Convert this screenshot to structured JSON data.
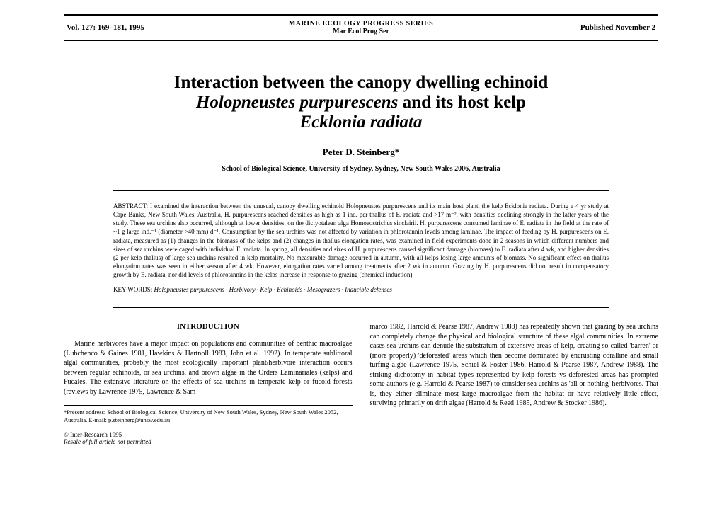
{
  "header": {
    "volume": "Vol. 127: 169–181, 1995",
    "journal_full": "MARINE ECOLOGY PROGRESS SERIES",
    "journal_abbrev": "Mar Ecol Prog Ser",
    "published": "Published November 2"
  },
  "title": {
    "line1": "Interaction between the canopy dwelling echinoid",
    "line2_italic": "Holopneustes purpurescens",
    "line2_plain": " and its host kelp",
    "line3": "Ecklonia radiata"
  },
  "author": "Peter D. Steinberg*",
  "affiliation": "School of Biological Science, University of Sydney, Sydney, New South Wales 2006, Australia",
  "abstract": {
    "label": "ABSTRACT:",
    "text": " I examined the interaction between the unusual, canopy dwelling echinoid Holopneustes purpurescens and its main host plant, the kelp Ecklonia radiata. During a 4 yr study at Cape Banks, New South Wales, Australia, H. purpurescens reached densities as high as 1 ind. per thallus of E. radiata and >17 m⁻², with densities declining strongly in the latter years of the study. These sea urchins also occurred, although at lower densities, on the dictyotalean alga Homoeostrichus sinclairii. H. purpurescens consumed laminae of E. radiata in the field at the rate of ~1 g large ind.⁻¹ (diameter >40 mm) d⁻¹. Consumption by the sea urchins was not affected by variation in phlorotannin levels among laminae. The impact of feeding by H. purpurescens on E. radiata, measured as (1) changes in the biomass of the kelps and (2) changes in thallus elongation rates, was examined in field experiments done in 2 seasons in which different numbers and sizes of sea urchins were caged with individual E. radiata. In spring, all densities and sizes of H. purpurescens caused significant damage (biomass) to E. radiata after 4 wk, and higher densities (2 per kelp thallus) of large sea urchins resulted in kelp mortality. No measurable damage occurred in autumn, with all kelps losing large amounts of biomass. No significant effect on thallus elongation rates was seen in either season after 4 wk. However, elongation rates varied among treatments after 2 wk in autumn. Grazing by H. purpurescens did not result in compensatory growth by E. radiata, nor did levels of phlorotannins in the kelps increase in response to grazing (chemical induction)."
  },
  "keywords": {
    "label": "KEY WORDS:",
    "text": " Holopneustes purpurescens · Herbivory · Kelp · Echinoids · Mesograzers · Inducible defenses"
  },
  "introduction": {
    "heading": "INTRODUCTION",
    "col1": "Marine herbivores have a major impact on populations and communities of benthic macroalgae (Lubchenco & Gaines 1981, Hawkins & Hartnoll 1983, John et al. 1992). In temperate sublittoral algal communities, probably the most ecologically important plant/herbivore interaction occurs between regular echinoids, or sea urchins, and brown algae in the Orders Laminariales (kelps) and Fucales. The extensive literature on the effects of sea urchins in temperate kelp or fucoid forests (reviews by Lawrence 1975, Lawrence & Sam-",
    "col2": "marco 1982, Harrold & Pearse 1987, Andrew 1988) has repeatedly shown that grazing by sea urchins can completely change the physical and biological structure of these algal communities. In extreme cases sea urchins can denude the substratum of extensive areas of kelp, creating so-called 'barren' or (more properly) 'deforested' areas which then become dominated by encrusting coralline and small turfing algae (Lawrence 1975, Schiel & Foster 1986, Harrold & Pearse 1987, Andrew 1988). The striking dichotomy in habitat types represented by kelp forests vs deforested areas has prompted some authors (e.g. Harrold & Pearse 1987) to consider sea urchins as 'all or nothing' herbivores. That is, they either eliminate most large macroalgae from the habitat or have relatively little effect, surviving primarily on drift algae (Harrold & Reed 1985, Andrew & Stocker 1986)."
  },
  "footnote": "*Present address: School of Biological Science, University of New South Wales, Sydney, New South Wales 2052, Australia. E-mail: p.steinberg@unsw.edu.au",
  "copyright": "© Inter-Research 1995",
  "resale": "Resale of full article not permitted"
}
